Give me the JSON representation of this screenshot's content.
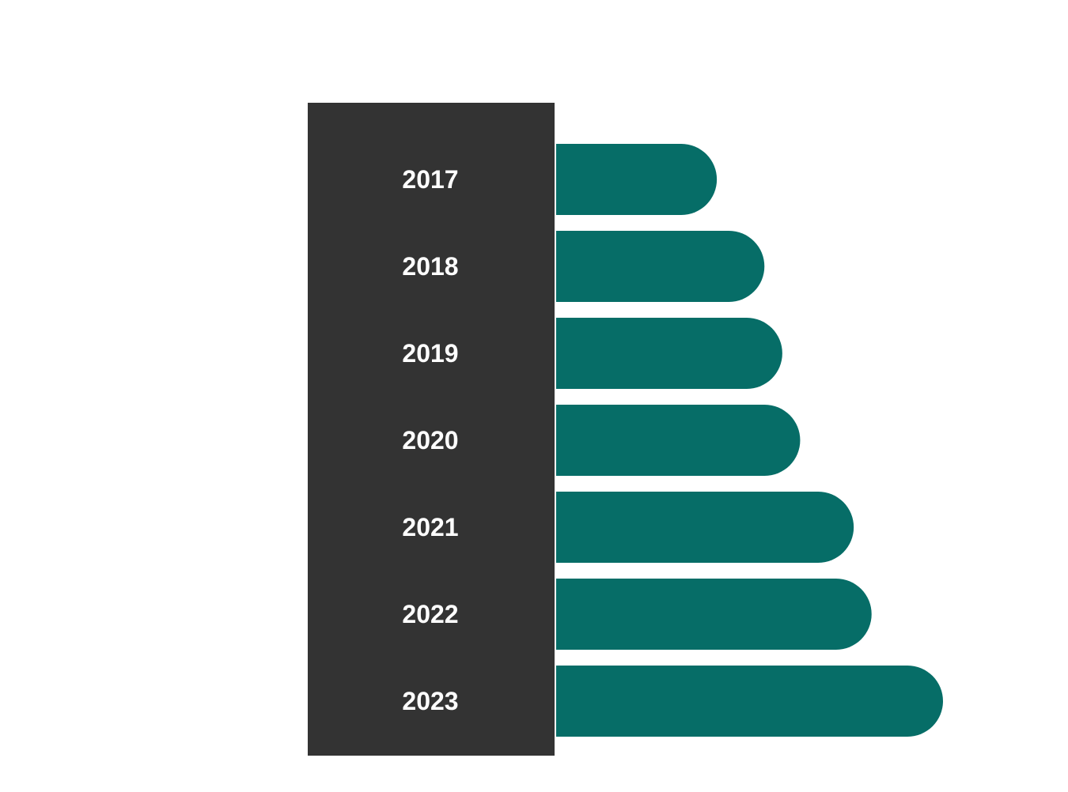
{
  "chart_data": {
    "type": "bar",
    "orientation": "horizontal",
    "categories": [
      "2017",
      "2018",
      "2019",
      "2020",
      "2021",
      "2022",
      "2023"
    ],
    "values": [
      27,
      35,
      38,
      41,
      50,
      53,
      65
    ],
    "title": "",
    "xlabel": "",
    "ylabel": "",
    "xlim": [
      0,
      65
    ],
    "grid": false,
    "legend": "none",
    "colors": {
      "bar": "#066d67",
      "label_panel": "#333333",
      "label_text": "#ffffff",
      "background": "#ffffff"
    }
  }
}
